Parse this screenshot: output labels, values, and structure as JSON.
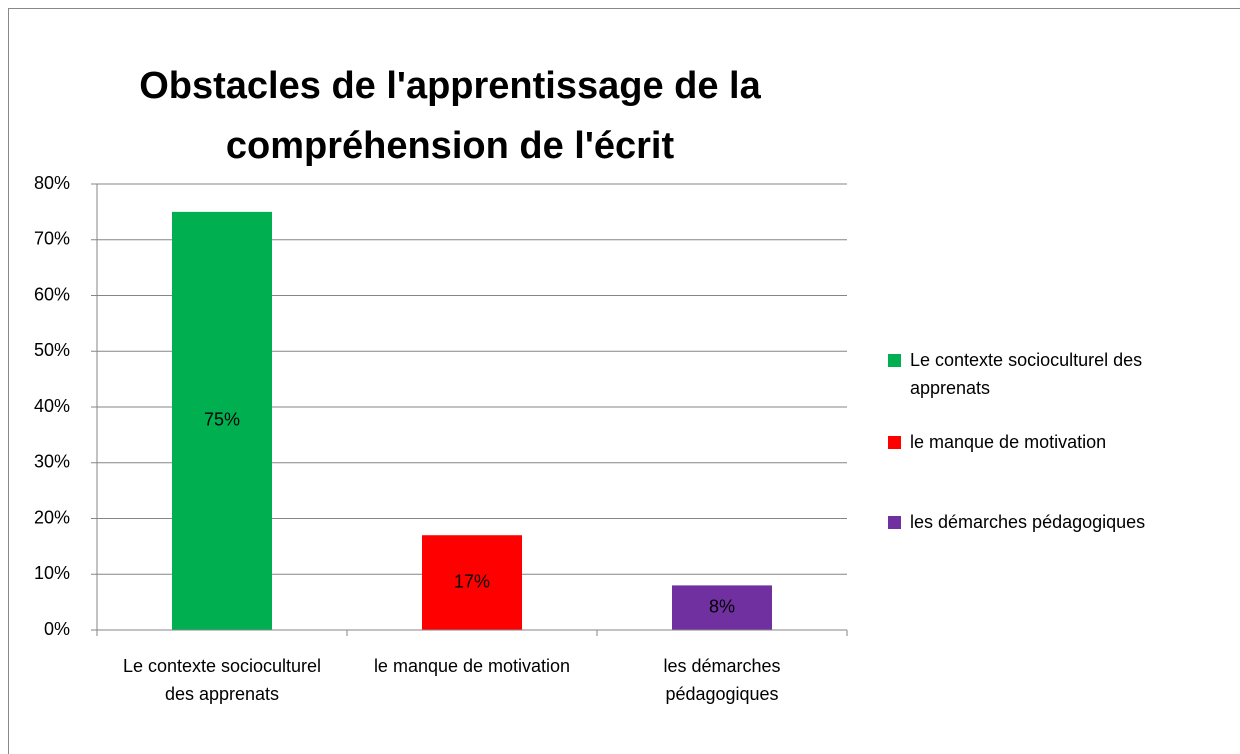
{
  "chart_data": {
    "type": "bar",
    "title": "Obstacles de l'apprentissage de la compréhension de l'écrit",
    "categories": [
      "Le contexte socioculturel des apprenats",
      "le manque de motivation",
      "les démarches pédagogiques"
    ],
    "values": [
      75,
      17,
      8
    ],
    "value_labels": [
      "75%",
      "17%",
      "8%"
    ],
    "colors": [
      "#00b050",
      "#ff0000",
      "#7030a0"
    ],
    "ylim": [
      0,
      80
    ],
    "yticks": [
      {
        "value": 0,
        "label": "0%"
      },
      {
        "value": 10,
        "label": "10%"
      },
      {
        "value": 20,
        "label": "20%"
      },
      {
        "value": 30,
        "label": "30%"
      },
      {
        "value": 40,
        "label": "40%"
      },
      {
        "value": 50,
        "label": "50%"
      },
      {
        "value": 60,
        "label": "60%"
      },
      {
        "value": 70,
        "label": "70%"
      },
      {
        "value": 80,
        "label": "80%"
      }
    ],
    "grid": true,
    "legend": "right"
  }
}
